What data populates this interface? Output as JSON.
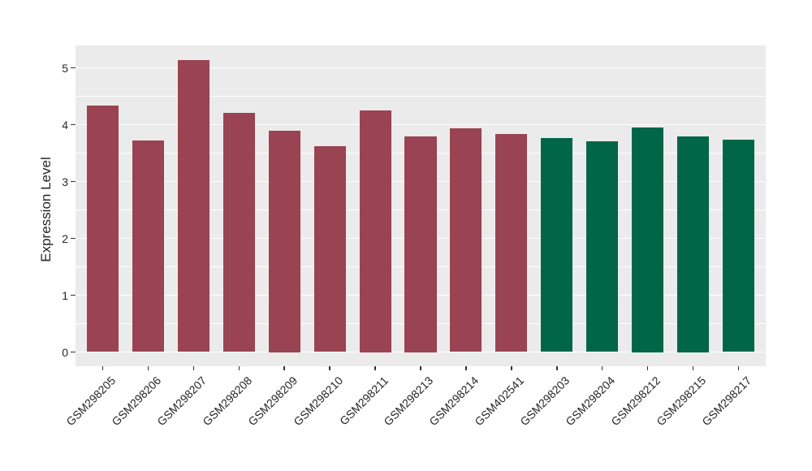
{
  "chart_data": {
    "type": "bar",
    "title": "",
    "xlabel": "",
    "ylabel": "Expression Level",
    "categories": [
      "GSM298205",
      "GSM298206",
      "GSM298207",
      "GSM298208",
      "GSM298209",
      "GSM298210",
      "GSM298211",
      "GSM298213",
      "GSM298214",
      "GSM402541",
      "GSM298203",
      "GSM298204",
      "GSM298212",
      "GSM298215",
      "GSM298217"
    ],
    "values": [
      4.34,
      3.72,
      5.13,
      4.21,
      3.9,
      3.62,
      4.25,
      3.8,
      3.93,
      3.84,
      3.77,
      3.71,
      3.95,
      3.8,
      3.74
    ],
    "groups": [
      "maroon",
      "maroon",
      "maroon",
      "maroon",
      "maroon",
      "maroon",
      "maroon",
      "maroon",
      "maroon",
      "maroon",
      "green",
      "green",
      "green",
      "green",
      "green"
    ],
    "group_colors": {
      "maroon": "#9A4352",
      "green": "#006647"
    },
    "ylim": [
      0,
      5.4
    ],
    "yticks": [
      0,
      1,
      2,
      3,
      4,
      5
    ],
    "ytick_labels": [
      "0",
      "1",
      "2",
      "3",
      "4",
      "5"
    ],
    "minor_yticks": [
      0.5,
      1.5,
      2.5,
      3.5,
      4.5
    ],
    "x_label_rotation_deg": 45,
    "legend": "none",
    "style": {
      "panel_bg": "#EBEBEB",
      "grid_major": "#FFFFFF",
      "grid_minor": "#FFFFFF",
      "axis_text_color": "#262626",
      "tick_mark_color": "#333333",
      "figure_bg": "#FFFFFF"
    }
  }
}
